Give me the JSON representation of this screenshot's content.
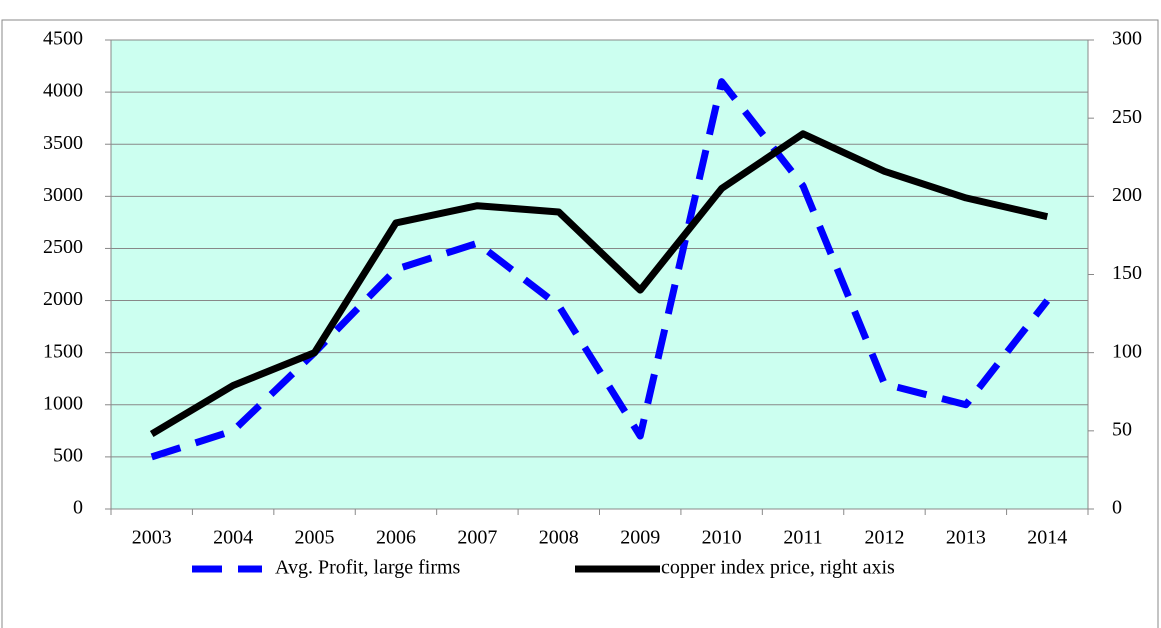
{
  "chart_data": {
    "type": "line",
    "categories": [
      "2003",
      "2004",
      "2005",
      "2006",
      "2007",
      "2008",
      "2009",
      "2010",
      "2011",
      "2012",
      "2013",
      "2014"
    ],
    "series": [
      {
        "name": "Avg. Profit, large firms",
        "color": "#0000ff",
        "dashed": true,
        "axis": "y",
        "values": [
          500,
          750,
          1500,
          2300,
          2550,
          1950,
          700,
          4100,
          3100,
          1200,
          1000,
          2000
        ]
      },
      {
        "name": "copper index price, right axis",
        "color": "#000000",
        "dashed": false,
        "axis": "y2",
        "values": [
          48,
          79,
          100,
          183,
          194,
          190,
          140,
          205,
          240,
          216,
          199,
          187
        ]
      }
    ],
    "ylim": [
      0,
      4500
    ],
    "yticks": [
      0,
      500,
      1000,
      1500,
      2000,
      2500,
      3000,
      3500,
      4000,
      4500
    ],
    "y2lim": [
      0,
      300
    ],
    "y2ticks": [
      0,
      50,
      100,
      150,
      200,
      250,
      300
    ],
    "grid": true,
    "legend": "bottom",
    "plot_background": "#ccfff0"
  }
}
